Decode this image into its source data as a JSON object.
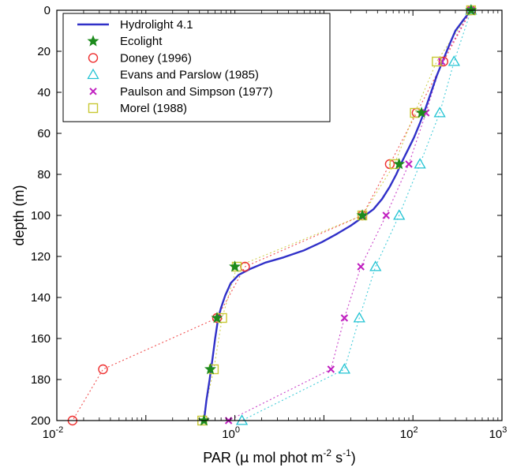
{
  "chart_data": {
    "type": "line",
    "xlabel": {
      "prefix": "PAR (",
      "mu": "μ",
      "mid": " mol phot m",
      "exp1": "-2",
      "sep": " s",
      "exp2": "-1",
      "suffix": ")"
    },
    "ylabel": "depth (m)",
    "xscale": "log",
    "xlim": [
      0.01,
      1000
    ],
    "ylim": [
      200,
      0
    ],
    "y_inverted": true,
    "grid": false,
    "legend_position": "top-left",
    "x_ticks": [
      {
        "value": 0.01,
        "base": "10",
        "exp": "-2"
      },
      {
        "value": 1,
        "base": "10",
        "exp": "0"
      },
      {
        "value": 100,
        "base": "10",
        "exp": "2"
      },
      {
        "value": 1000,
        "base": "10",
        "exp": "3"
      }
    ],
    "y_ticks": [
      "0",
      "20",
      "40",
      "60",
      "80",
      "100",
      "120",
      "140",
      "160",
      "180",
      "200"
    ],
    "series": [
      {
        "name": "Hydrolight 4.1",
        "style": "line",
        "color": "#3030c8",
        "points": [
          [
            450,
            0
          ],
          [
            380,
            4
          ],
          [
            300,
            10
          ],
          [
            250,
            18
          ],
          [
            215,
            25
          ],
          [
            185,
            32
          ],
          [
            160,
            40
          ],
          [
            138,
            48
          ],
          [
            120,
            55
          ],
          [
            103,
            62
          ],
          [
            88,
            68
          ],
          [
            75,
            74
          ],
          [
            65,
            80
          ],
          [
            55,
            86
          ],
          [
            45,
            92
          ],
          [
            36,
            97
          ],
          [
            27,
            101
          ],
          [
            20,
            105
          ],
          [
            14,
            109
          ],
          [
            9.5,
            113
          ],
          [
            6,
            117
          ],
          [
            3.5,
            120.5
          ],
          [
            2.2,
            123
          ],
          [
            1.5,
            126
          ],
          [
            1.1,
            129
          ],
          [
            0.9,
            133
          ],
          [
            0.78,
            139
          ],
          [
            0.7,
            145
          ],
          [
            0.65,
            150
          ],
          [
            0.6,
            160
          ],
          [
            0.56,
            170
          ],
          [
            0.52,
            180
          ],
          [
            0.48,
            190
          ],
          [
            0.45,
            200
          ]
        ]
      },
      {
        "name": "Ecolight",
        "style": "marker",
        "marker": "star",
        "color": "#1c8a1c",
        "points": [
          [
            450,
            0
          ],
          [
            125,
            50
          ],
          [
            70,
            75
          ],
          [
            27,
            100
          ],
          [
            1,
            125
          ],
          [
            0.63,
            150
          ],
          [
            0.53,
            175
          ],
          [
            0.45,
            200
          ]
        ]
      },
      {
        "name": "Doney (1996)",
        "style": "marker+dotted",
        "marker": "circle",
        "color": "#ee3030",
        "points": [
          [
            450,
            0
          ],
          [
            220,
            25
          ],
          [
            110,
            50
          ],
          [
            55,
            75
          ],
          [
            27,
            100
          ],
          [
            1.3,
            125
          ],
          [
            0.63,
            150
          ],
          [
            0.033,
            175
          ],
          [
            0.015,
            200
          ]
        ]
      },
      {
        "name": "Evans and Parslow (1985)",
        "style": "marker+dotted",
        "marker": "triangle",
        "color": "#22c3d3",
        "points": [
          [
            450,
            0
          ],
          [
            290,
            25
          ],
          [
            200,
            50
          ],
          [
            120,
            75
          ],
          [
            70,
            100
          ],
          [
            38,
            125
          ],
          [
            25,
            150
          ],
          [
            17,
            175
          ],
          [
            1.2,
            200
          ]
        ]
      },
      {
        "name": "Paulson and Simpson (1977)",
        "style": "marker+dotted",
        "marker": "x",
        "color": "#c020c0",
        "points": [
          [
            450,
            0
          ],
          [
            210,
            25
          ],
          [
            140,
            50
          ],
          [
            90,
            75
          ],
          [
            50,
            100
          ],
          [
            26,
            125
          ],
          [
            17,
            150
          ],
          [
            12,
            175
          ],
          [
            0.85,
            200
          ]
        ]
      },
      {
        "name": "Morel (1988)",
        "style": "marker+dotted",
        "marker": "square",
        "color": "#c8c832",
        "points": [
          [
            450,
            0
          ],
          [
            185,
            25
          ],
          [
            105,
            50
          ],
          [
            62,
            75
          ],
          [
            27,
            100
          ],
          [
            1.05,
            125
          ],
          [
            0.72,
            150
          ],
          [
            0.58,
            175
          ],
          [
            0.43,
            200
          ]
        ]
      }
    ]
  }
}
